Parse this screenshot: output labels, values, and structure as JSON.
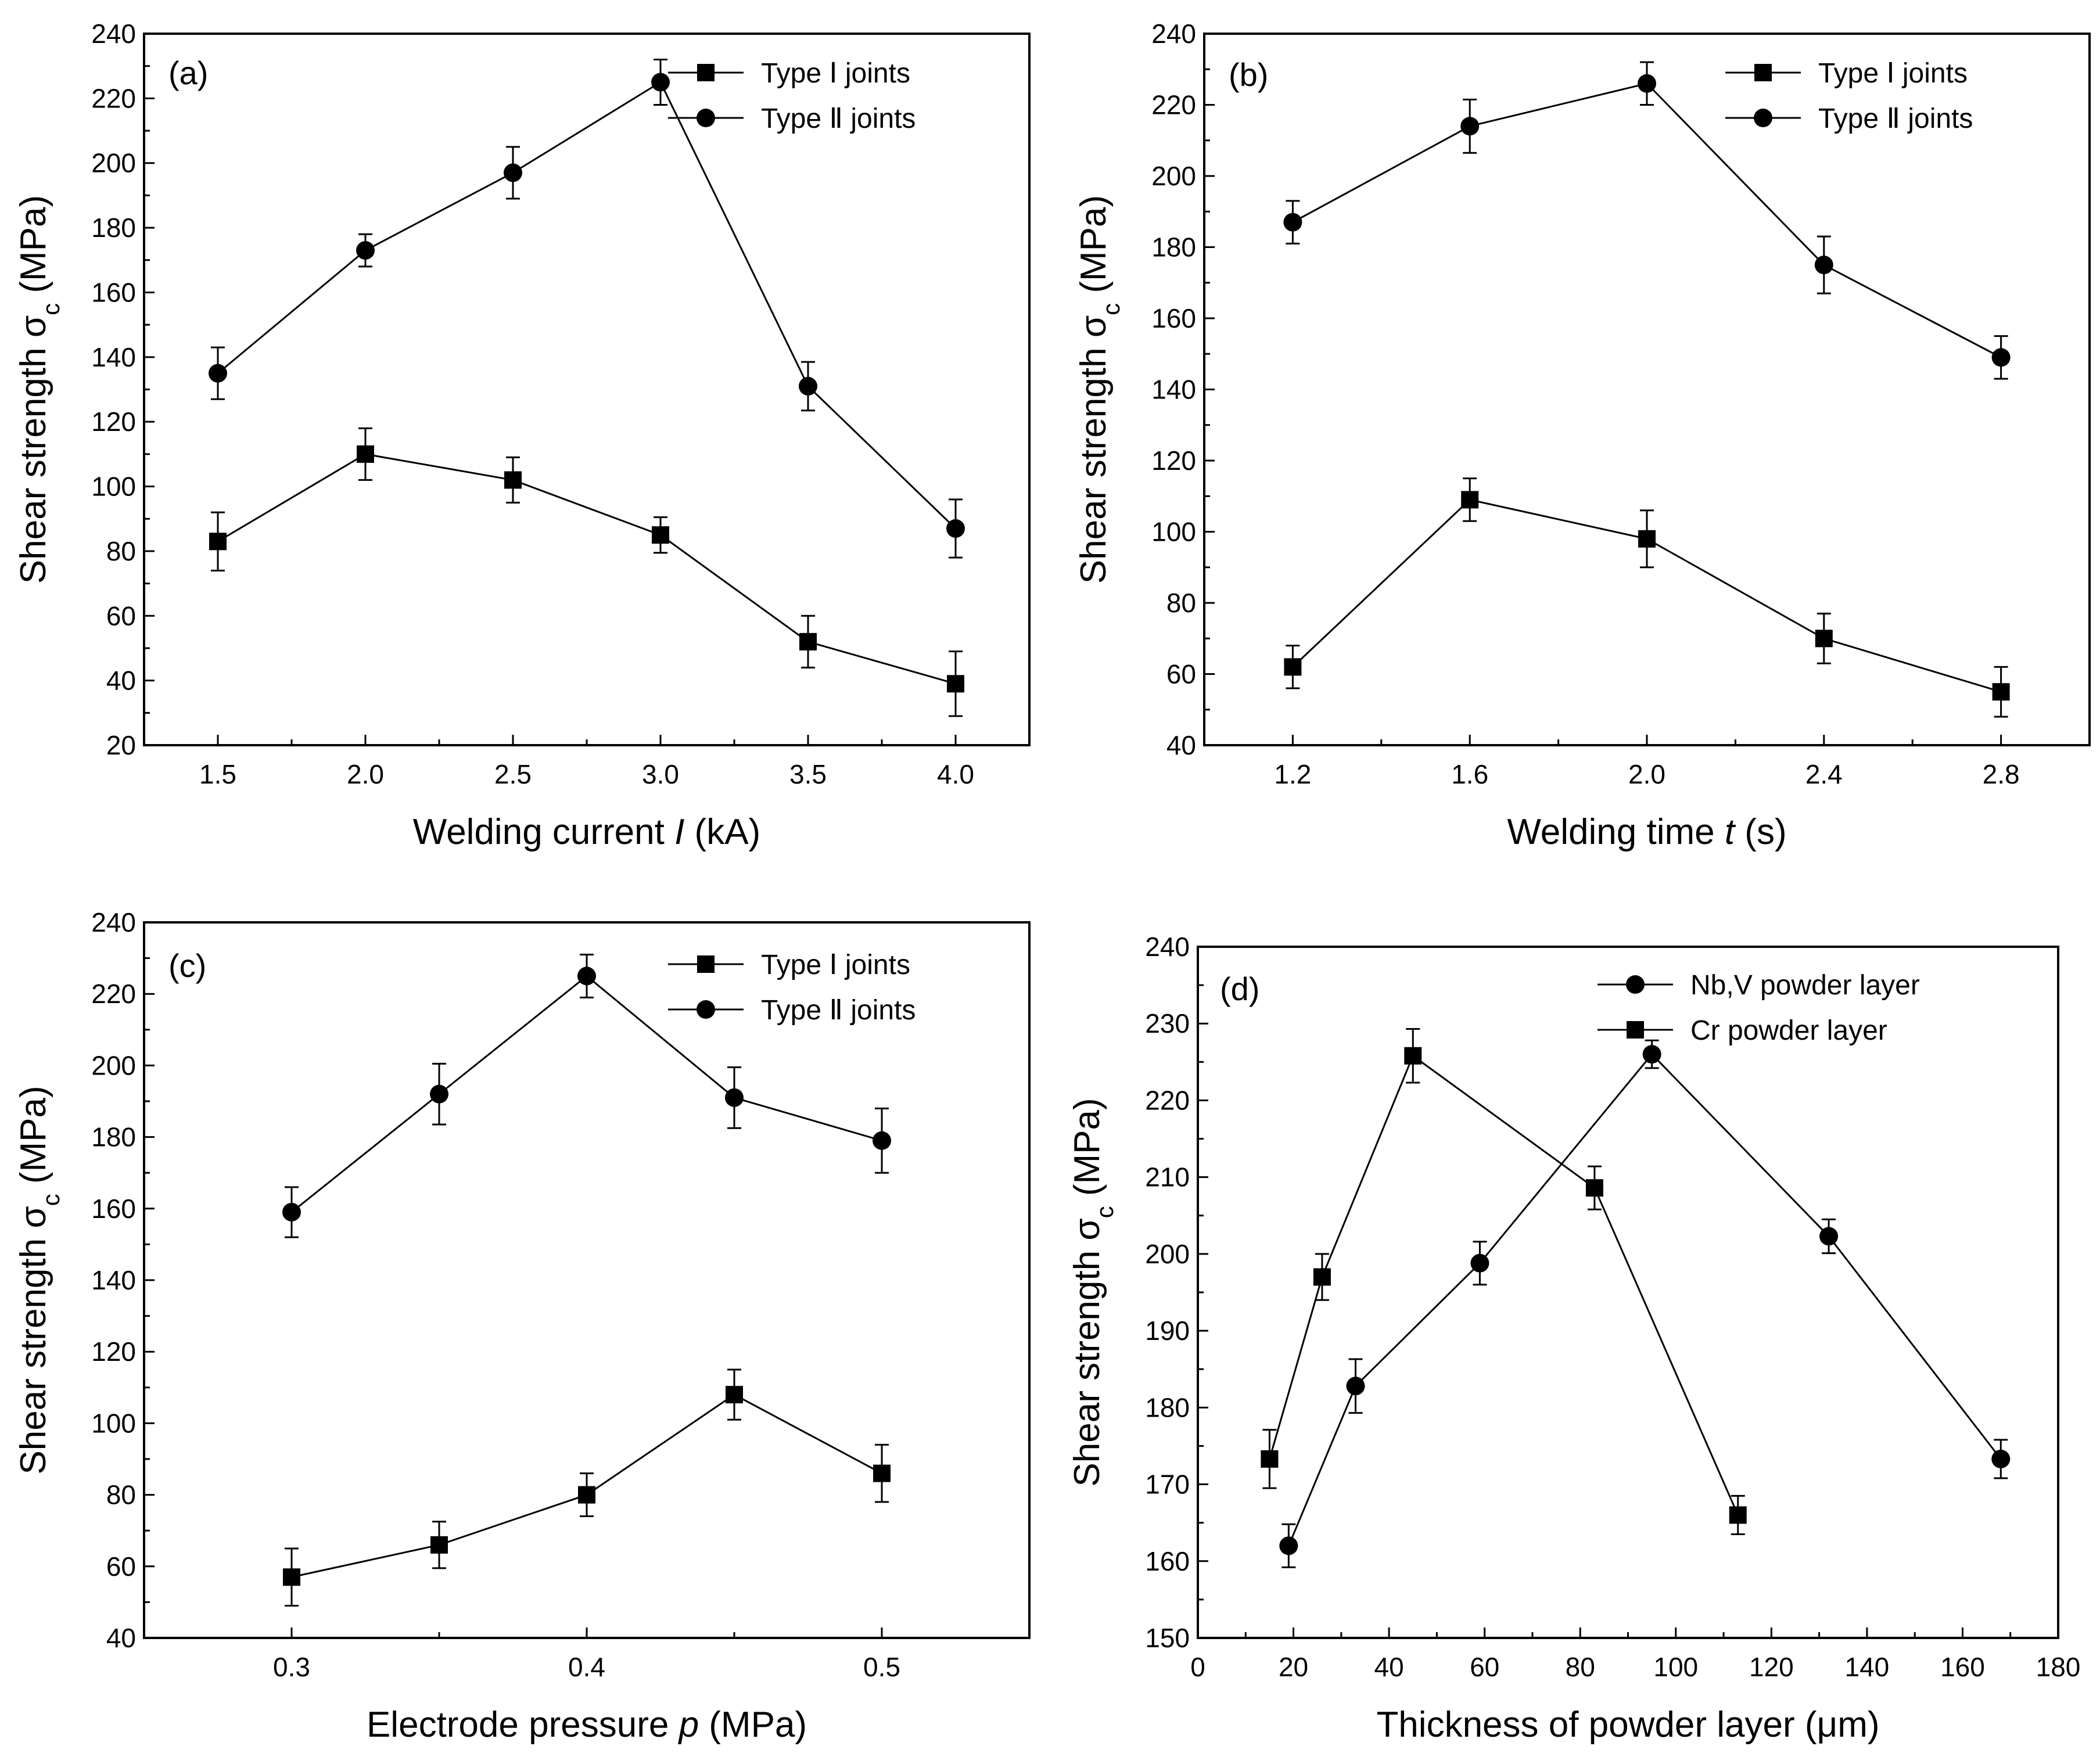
{
  "chart_data": [
    {
      "type": "line",
      "panel_label": "(a)",
      "xlabel": "Welding current I (kA)",
      "xlabel_parts": [
        "Welding current ",
        "I",
        " (kA)"
      ],
      "ylabel": "Shear strength σc (MPa)",
      "xlim": [
        1.25,
        4.25
      ],
      "ylim": [
        20,
        240
      ],
      "xticks": [
        "1.5",
        "2.0",
        "2.5",
        "3.0",
        "3.5",
        "4.0"
      ],
      "yticks": [
        "20",
        "40",
        "60",
        "80",
        "100",
        "120",
        "140",
        "160",
        "180",
        "200",
        "220",
        "240"
      ],
      "legend_position": "top-right",
      "series": [
        {
          "name": "Type Ⅰ joints",
          "marker": "square",
          "x": [
            1.5,
            2.0,
            2.5,
            3.0,
            3.5,
            4.0
          ],
          "y": [
            83,
            110,
            102,
            85,
            52,
            39
          ],
          "err": [
            9,
            8,
            7,
            5.5,
            8,
            10
          ]
        },
        {
          "name": "Type Ⅱ joints",
          "marker": "circle",
          "x": [
            1.5,
            2.0,
            2.5,
            3.0,
            3.5,
            4.0
          ],
          "y": [
            135,
            173,
            197,
            225,
            131,
            87
          ],
          "err": [
            8,
            5,
            8,
            7,
            7.5,
            9
          ]
        }
      ]
    },
    {
      "type": "line",
      "panel_label": "(b)",
      "xlabel": "Welding time t (s)",
      "xlabel_parts": [
        "Welding time ",
        "t",
        " (s)"
      ],
      "ylabel": "Shear strength σc (MPa)",
      "xlim": [
        1.0,
        3.0
      ],
      "ylim": [
        40,
        240
      ],
      "xticks": [
        "1.2",
        "1.6",
        "2.0",
        "2.4",
        "2.8"
      ],
      "yticks": [
        "40",
        "60",
        "80",
        "100",
        "120",
        "140",
        "160",
        "180",
        "200",
        "220",
        "240"
      ],
      "legend_position": "top-right",
      "series": [
        {
          "name": "Type Ⅰ joints",
          "marker": "square",
          "x": [
            1.2,
            1.6,
            2.0,
            2.4,
            2.8
          ],
          "y": [
            62,
            109,
            98,
            70,
            55
          ],
          "err": [
            6,
            6,
            8,
            7,
            7
          ]
        },
        {
          "name": "Type Ⅱ joints",
          "marker": "circle",
          "x": [
            1.2,
            1.6,
            2.0,
            2.4,
            2.8
          ],
          "y": [
            187,
            214,
            226,
            175,
            149
          ],
          "err": [
            6,
            7.5,
            6,
            8,
            6
          ]
        }
      ]
    },
    {
      "type": "line",
      "panel_label": "(c)",
      "xlabel": "Electrode pressure p (MPa)",
      "xlabel_parts": [
        "Electrode pressure ",
        "p",
        " (MPa)"
      ],
      "ylabel": "Shear strength σc (MPa)",
      "xlim": [
        0.25,
        0.55
      ],
      "ylim": [
        40,
        240
      ],
      "xticks": [
        "0.3",
        "0.4",
        "0.5"
      ],
      "yticks": [
        "40",
        "60",
        "80",
        "100",
        "120",
        "140",
        "160",
        "180",
        "200",
        "220",
        "240"
      ],
      "legend_position": "top-right",
      "series": [
        {
          "name": "Type Ⅰ joints",
          "marker": "square",
          "x": [
            0.3,
            0.35,
            0.4,
            0.45,
            0.5
          ],
          "y": [
            57,
            66,
            80,
            108,
            86
          ],
          "err": [
            8,
            6.5,
            6,
            7,
            8
          ]
        },
        {
          "name": "Type Ⅱ joints",
          "marker": "circle",
          "x": [
            0.3,
            0.35,
            0.4,
            0.45,
            0.5
          ],
          "y": [
            159,
            192,
            225,
            191,
            179
          ],
          "err": [
            7,
            8.5,
            6,
            8.5,
            9
          ]
        }
      ]
    },
    {
      "type": "line",
      "panel_label": "(d)",
      "xlabel": "Thickness of powder layer (μm)",
      "xlabel_parts": [
        "Thickness of powder layer (",
        "μm",
        ")"
      ],
      "ylabel": "Shear strength σc (MPa)",
      "xlim": [
        0,
        180
      ],
      "ylim": [
        150,
        240
      ],
      "xticks": [
        "0",
        "20",
        "40",
        "60",
        "80",
        "100",
        "120",
        "140",
        "160",
        "180"
      ],
      "yticks": [
        "150",
        "160",
        "170",
        "180",
        "190",
        "200",
        "210",
        "220",
        "230",
        "240"
      ],
      "legend_position": "top-right",
      "legend_style": "line-marker-line",
      "series": [
        {
          "name": "Nb,V powder layer",
          "marker": "circle",
          "x": [
            19,
            33,
            59,
            95,
            132,
            168
          ],
          "y": [
            162,
            182.8,
            198.8,
            226,
            202.3,
            173.3
          ],
          "err": [
            2.8,
            3.5,
            2.8,
            1.8,
            2.2,
            2.5
          ]
        },
        {
          "name": "Cr powder layer",
          "marker": "square",
          "x": [
            15,
            26,
            45,
            83,
            113
          ],
          "y": [
            173.3,
            197,
            225.8,
            208.6,
            166
          ],
          "err": [
            3.8,
            3,
            3.5,
            2.8,
            2.5
          ]
        }
      ]
    }
  ]
}
